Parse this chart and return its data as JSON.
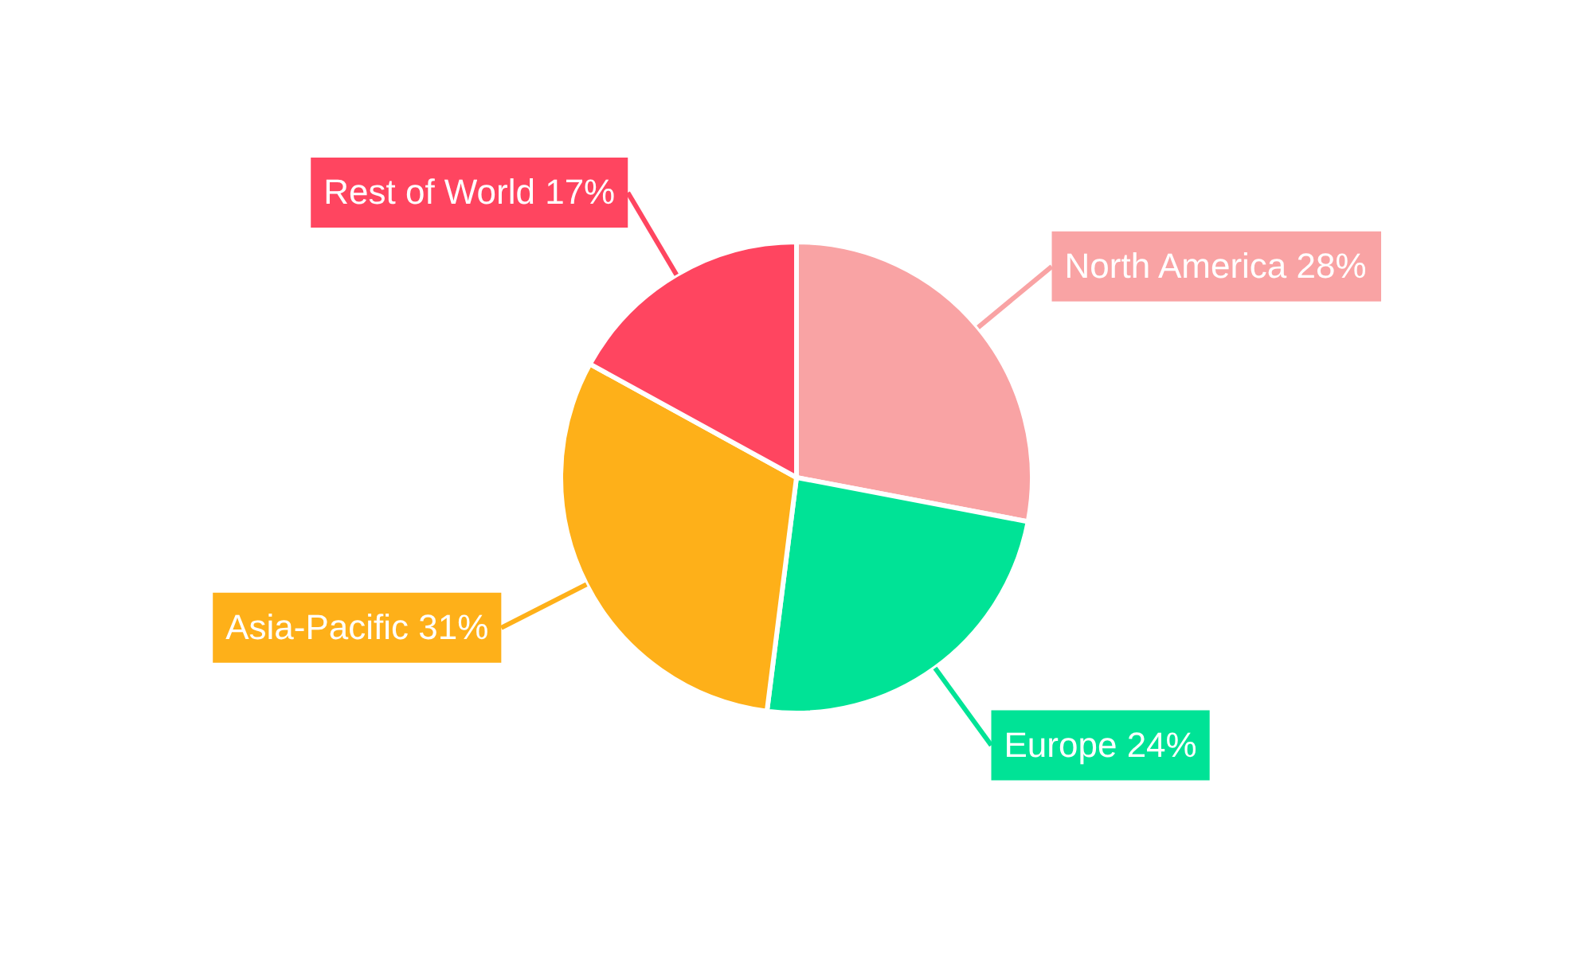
{
  "chart_data": {
    "type": "pie",
    "categories": [
      "North America",
      "Europe",
      "Asia-Pacific",
      "Rest of World"
    ],
    "values": [
      28,
      24,
      31,
      17
    ],
    "colors": [
      "#f9a3a4",
      "#00e396",
      "#feb019",
      "#ff4560"
    ],
    "value_labels": [
      "28%",
      "24%",
      "31%",
      "17%"
    ],
    "legend": false
  }
}
